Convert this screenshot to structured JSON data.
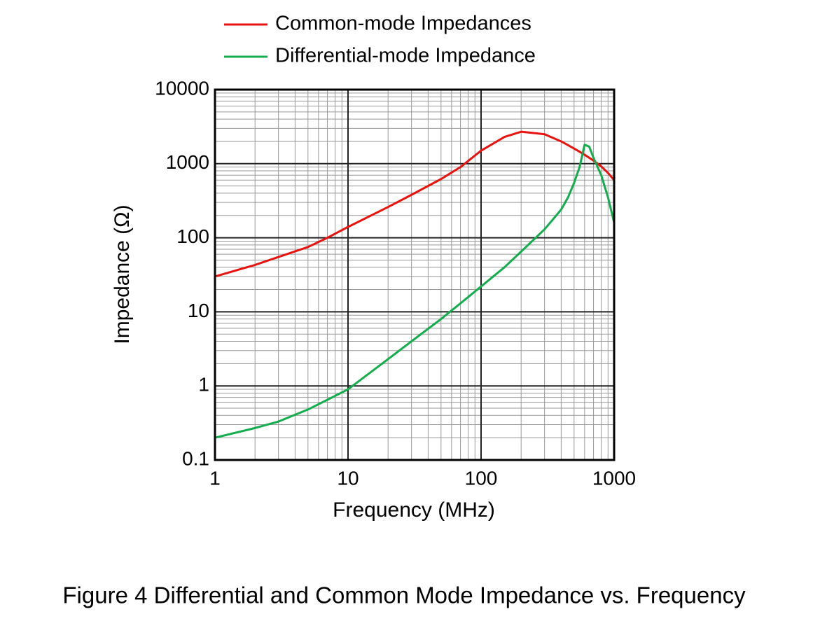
{
  "chart_data": {
    "type": "line",
    "caption": "Figure 4 Differential and Common Mode Impedance vs. Frequency",
    "x_label": "Frequency (MHz)",
    "y_label": "Impedance (Ω)",
    "x_log": true,
    "y_log": true,
    "grid": true,
    "legend": "top",
    "xlim": [
      1,
      1000
    ],
    "ylim": [
      0.1,
      10000
    ],
    "xticks": [
      1,
      10,
      100,
      1000
    ],
    "yticks": [
      0.1,
      1,
      10,
      100,
      1000,
      10000
    ],
    "xminorticks": [
      2,
      3,
      4,
      5,
      6,
      7,
      8,
      9,
      20,
      30,
      40,
      50,
      60,
      70,
      80,
      90,
      200,
      300,
      400,
      500,
      600,
      700,
      800,
      900
    ],
    "yminorticks": [
      0.2,
      0.3,
      0.4,
      0.5,
      0.6,
      0.7,
      0.8,
      0.9,
      2,
      3,
      4,
      5,
      6,
      7,
      8,
      9,
      20,
      30,
      40,
      50,
      60,
      70,
      80,
      90,
      200,
      300,
      400,
      500,
      600,
      700,
      800,
      900,
      2000,
      3000,
      4000,
      5000,
      6000,
      7000,
      8000,
      9000
    ],
    "x": [
      1,
      2,
      3,
      5,
      7,
      10,
      20,
      30,
      50,
      70,
      100,
      150,
      200,
      300,
      400,
      450,
      500,
      550,
      600,
      650,
      700,
      800,
      900,
      1000
    ],
    "series": [
      {
        "name": "Common-mode Impedances",
        "color": "#e8130f",
        "values": [
          30,
          43,
          55,
          75,
          100,
          140,
          260,
          380,
          620,
          900,
          1500,
          2300,
          2700,
          2500,
          2000,
          1780,
          1600,
          1450,
          1320,
          1200,
          1100,
          920,
          750,
          600
        ]
      },
      {
        "name": "Differential-mode Impedance",
        "color": "#13ad4e",
        "values": [
          0.2,
          0.27,
          0.33,
          0.48,
          0.65,
          0.9,
          2.3,
          4,
          8,
          13,
          22,
          40,
          65,
          130,
          240,
          350,
          550,
          900,
          1800,
          1700,
          1200,
          700,
          350,
          160
        ]
      }
    ]
  }
}
